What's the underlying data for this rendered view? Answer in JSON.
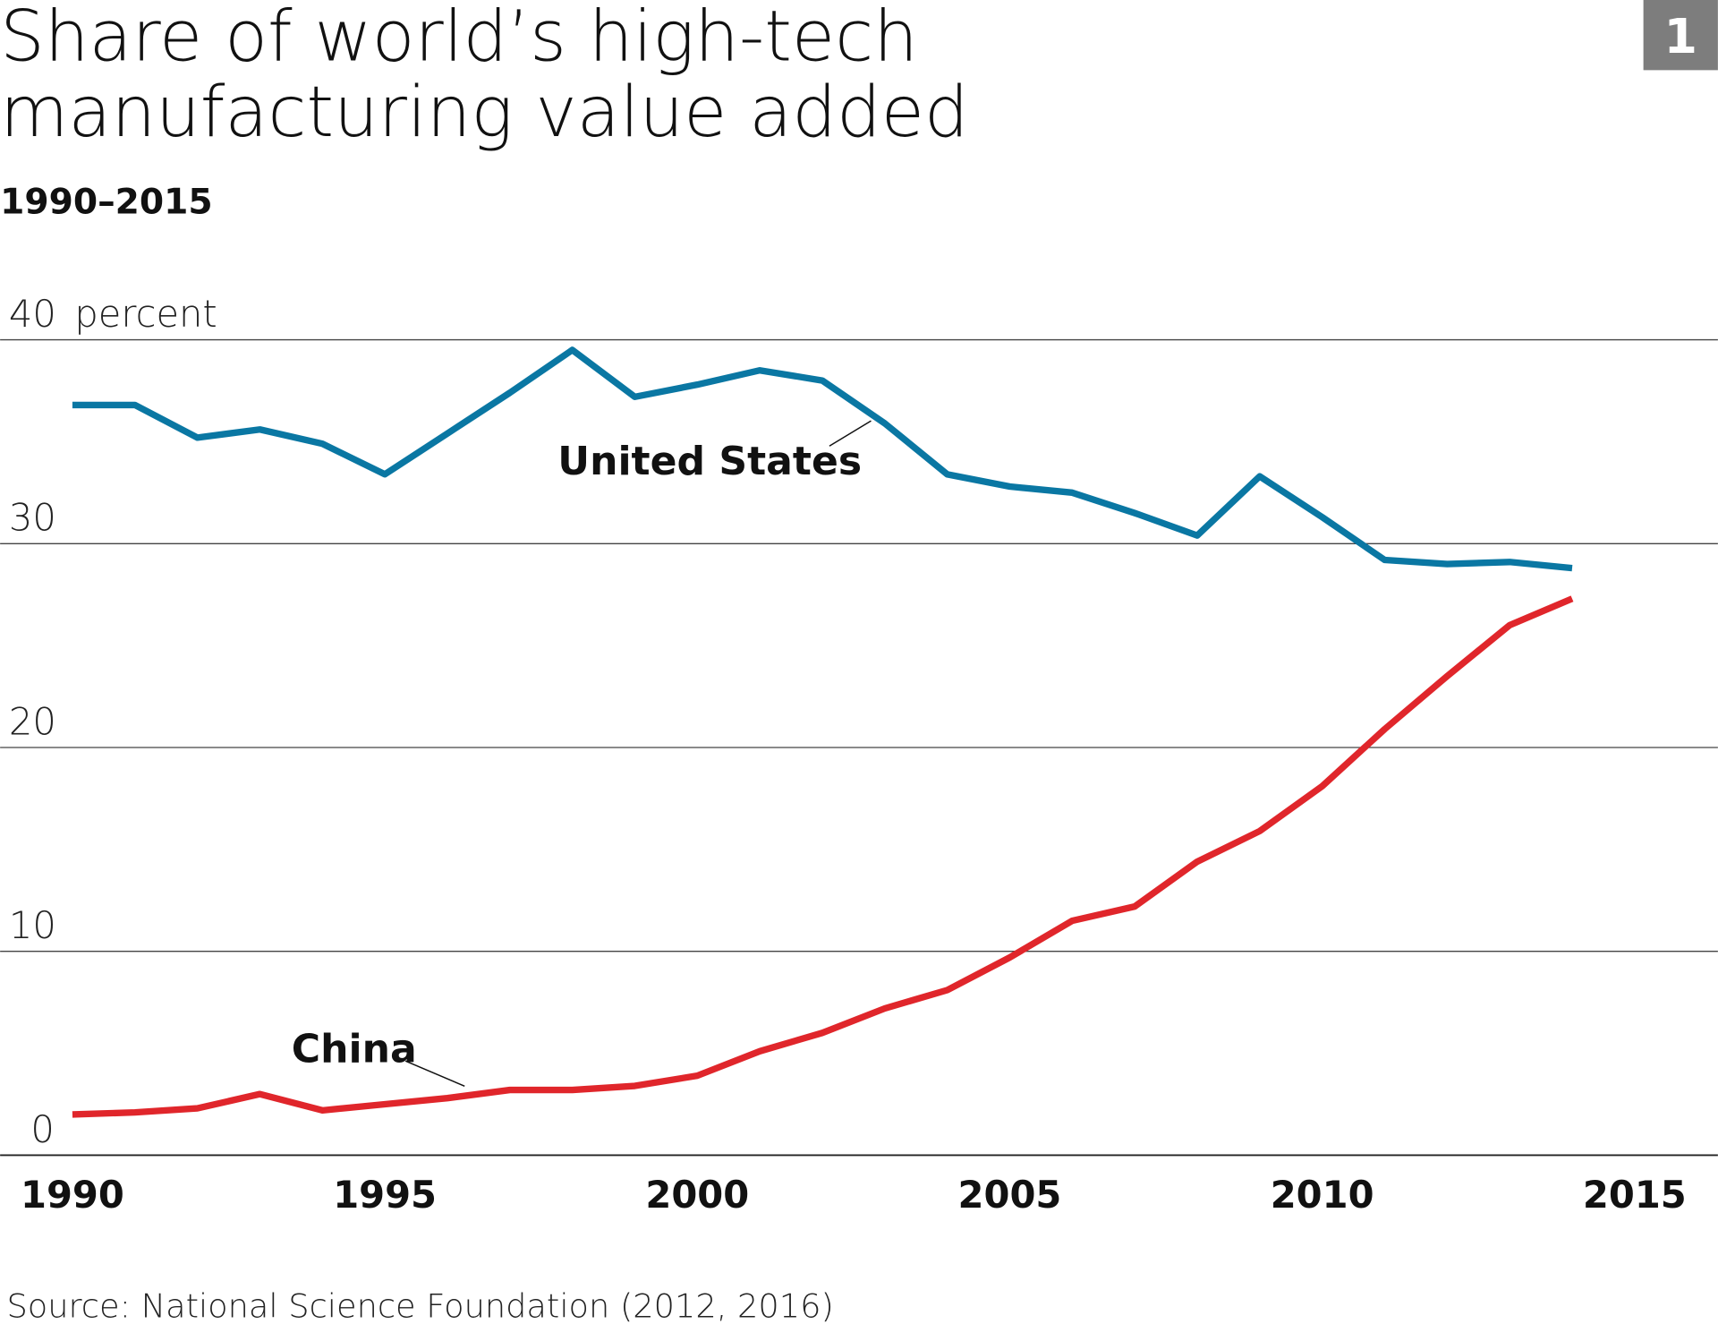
{
  "badge": "1",
  "chart_data": {
    "type": "line",
    "title": [
      "Share of world’s high-tech",
      "manufacturing value added"
    ],
    "subtitle": "1990–2015",
    "ylabel": "percent",
    "ylim": [
      0,
      40
    ],
    "yticks": [
      "0",
      "10",
      "20",
      "30",
      "40"
    ],
    "xlim": [
      1990,
      2015
    ],
    "xticks": [
      "1990",
      "1995",
      "2000",
      "2005",
      "2010",
      "2015"
    ],
    "grid": "horizontal",
    "x": [
      1990,
      1991,
      1992,
      1993,
      1994,
      1995,
      1996,
      1997,
      1998,
      1999,
      2000,
      2001,
      2002,
      2003,
      2004,
      2005,
      2006,
      2007,
      2008,
      2009,
      2010,
      2011,
      2012,
      2013,
      2014
    ],
    "series": [
      {
        "name": "United States",
        "color": "#0a77a3",
        "values": [
          36.8,
          36.8,
          35.2,
          35.6,
          34.9,
          33.4,
          35.4,
          37.4,
          39.5,
          37.2,
          37.8,
          38.5,
          38.0,
          35.9,
          33.4,
          32.8,
          32.5,
          31.5,
          30.4,
          33.3,
          31.3,
          29.2,
          29.0,
          29.1,
          28.8
        ]
      },
      {
        "name": "China",
        "color": "#e0262b",
        "values": [
          2.0,
          2.1,
          2.3,
          3.0,
          2.2,
          2.5,
          2.8,
          3.2,
          3.2,
          3.4,
          3.9,
          5.1,
          6.0,
          7.2,
          8.1,
          9.7,
          11.5,
          12.2,
          14.4,
          15.9,
          18.1,
          20.9,
          23.5,
          26.0,
          27.3
        ]
      }
    ],
    "source": "Source: National Science Foundation (2012, 2016)"
  }
}
